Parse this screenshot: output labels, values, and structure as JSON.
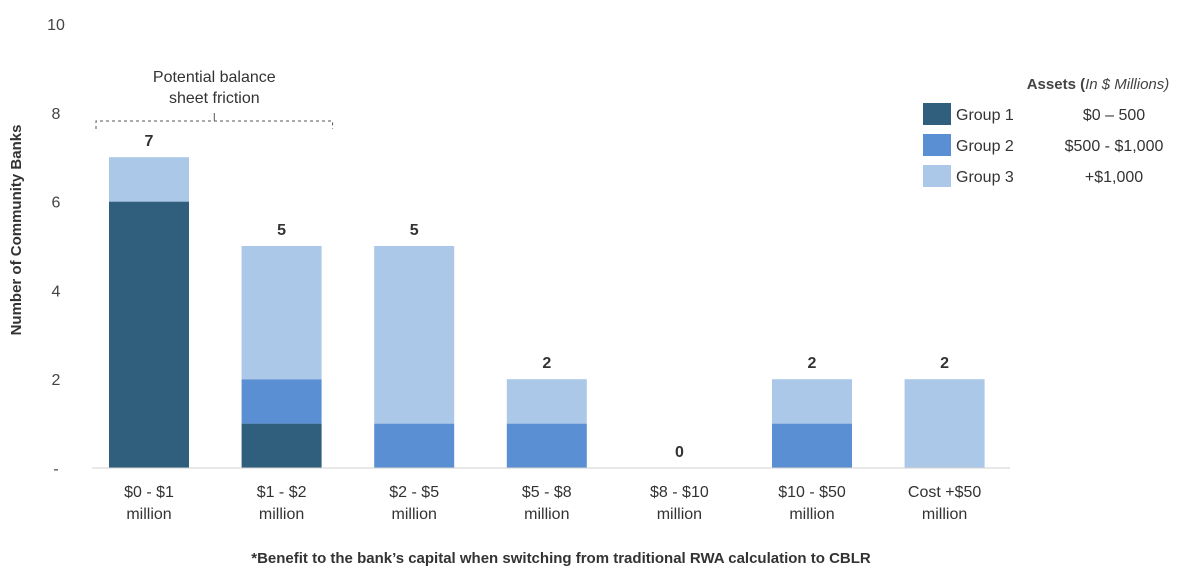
{
  "chart_data": {
    "type": "bar",
    "stacked": true,
    "categories": [
      [
        "$0 - $1",
        "million"
      ],
      [
        "$1 - $2",
        "million"
      ],
      [
        "$2 - $5",
        "million"
      ],
      [
        "$5 - $8",
        "million"
      ],
      [
        "$8 - $10",
        "million"
      ],
      [
        "$10 - $50",
        "million"
      ],
      [
        "Cost +$50",
        "million"
      ]
    ],
    "series": [
      {
        "name": "Group 1",
        "range": "$0 – 500",
        "color": "#2f5f7d",
        "values": [
          6,
          1,
          0,
          0,
          0,
          0,
          0
        ]
      },
      {
        "name": "Group 2",
        "range": "$500 - $1,000",
        "color": "#5b8fd3",
        "values": [
          0,
          1,
          1,
          1,
          0,
          1,
          0
        ]
      },
      {
        "name": "Group 3",
        "range": "+$1,000",
        "color": "#abc8e8",
        "values": [
          1,
          3,
          4,
          1,
          0,
          1,
          2
        ]
      }
    ],
    "totals": [
      "7",
      "5",
      "5",
      "2",
      "0",
      "2",
      "2"
    ],
    "ylim": [
      0,
      10
    ],
    "yticks": [
      {
        "value": 0,
        "label": "-"
      },
      {
        "value": 2,
        "label": "2"
      },
      {
        "value": 4,
        "label": "4"
      },
      {
        "value": 6,
        "label": "6"
      },
      {
        "value": 8,
        "label": "8"
      },
      {
        "value": 10,
        "label": "10"
      }
    ],
    "ylabel": "Number of Community Banks",
    "xlabel": "*Benefit to the bank’s capital when switching from traditional RWA calculation to CBLR",
    "annotation": {
      "lines": [
        "Potential balance",
        "sheet friction"
      ],
      "from_category": 0,
      "to_category": 1
    },
    "legend": {
      "title": "Assets",
      "title_suffix": "In $ Millions",
      "placement": "top-right"
    },
    "grid": false
  }
}
